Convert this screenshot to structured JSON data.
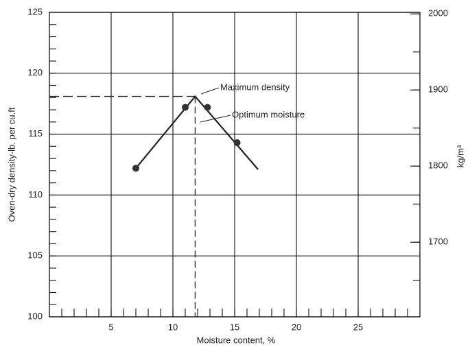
{
  "chart_data": {
    "type": "line",
    "x_label": "Moisture content, %",
    "y_label": "Oven-dry density-lb. per cu.ft",
    "y2_label": "kg/m³",
    "x": [
      7,
      11.8,
      16.9
    ],
    "values": [
      112.2,
      118.1,
      112.1
    ],
    "points": {
      "x": [
        7,
        11,
        12.8,
        15.2
      ],
      "values": [
        112.2,
        117.2,
        117.2,
        114.3
      ]
    },
    "peak": {
      "x": 11.8,
      "y": 118.1
    },
    "annotations": [
      "Maximum density",
      "Optimum moisture"
    ],
    "color": "#222222",
    "xlim": [
      0,
      30
    ],
    "xticks": [
      5,
      10,
      15,
      20,
      25
    ],
    "ylim": [
      100,
      125
    ],
    "yticks": [
      100,
      105,
      110,
      115,
      120,
      125
    ],
    "y2lim": [
      1602,
      2002
    ],
    "y2ticks": [
      1700,
      1800,
      1900,
      2000
    ],
    "minor_tick_step": {
      "x": 1,
      "y": 1,
      "y2": 50
    },
    "grid": true
  }
}
